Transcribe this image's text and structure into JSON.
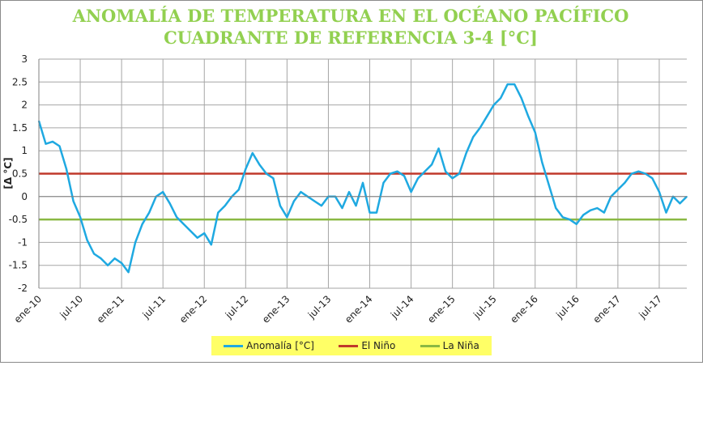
{
  "chart_data": {
    "type": "line",
    "title": [
      "ANOMALÍA DE TEMPERATURA EN EL OCÉANO PACÍFICO",
      "CUADRANTE DE REFERENCIA 3-4 [°C]"
    ],
    "ylabel": "[Δ °C]",
    "xlabel": "",
    "ylim": [
      -2,
      3
    ],
    "yticks": [
      3,
      2.5,
      2,
      1.5,
      1,
      0.5,
      0,
      -0.5,
      -1,
      -1.5,
      -2
    ],
    "ytick_labels": [
      "3",
      "2.5",
      "2",
      "1.5",
      "1",
      "0.5",
      "0",
      "-0.5",
      "-1",
      "-1.5",
      "-2"
    ],
    "xticks": [
      {
        "label": "ene-10",
        "date": "2010-01"
      },
      {
        "label": "jul-10",
        "date": "2010-07"
      },
      {
        "label": "ene-11",
        "date": "2011-01"
      },
      {
        "label": "jul-11",
        "date": "2011-07"
      },
      {
        "label": "ene-12",
        "date": "2012-01"
      },
      {
        "label": "jul-12",
        "date": "2012-07"
      },
      {
        "label": "ene-13",
        "date": "2013-01"
      },
      {
        "label": "jul-13",
        "date": "2013-07"
      },
      {
        "label": "ene-14",
        "date": "2014-01"
      },
      {
        "label": "jul-14",
        "date": "2014-07"
      },
      {
        "label": "ene-15",
        "date": "2015-01"
      },
      {
        "label": "jul-15",
        "date": "2015-07"
      },
      {
        "label": "ene-16",
        "date": "2016-01"
      },
      {
        "label": "jul-16",
        "date": "2016-07"
      },
      {
        "label": "ene-17",
        "date": "2017-01"
      },
      {
        "label": "jul-17",
        "date": "2017-07"
      }
    ],
    "x_range": [
      "2010-01",
      "2017-11"
    ],
    "grid": true,
    "legend_position": "bottom",
    "series": [
      {
        "name": "Anomalía [°C]",
        "color": "#1fa9e1",
        "dates": [
          "2010-01",
          "2010-02",
          "2010-03",
          "2010-04",
          "2010-05",
          "2010-06",
          "2010-07",
          "2010-08",
          "2010-09",
          "2010-10",
          "2010-11",
          "2010-12",
          "2011-01",
          "2011-02",
          "2011-03",
          "2011-04",
          "2011-05",
          "2011-06",
          "2011-07",
          "2011-08",
          "2011-09",
          "2011-10",
          "2011-11",
          "2011-12",
          "2012-01",
          "2012-02",
          "2012-03",
          "2012-04",
          "2012-05",
          "2012-06",
          "2012-07",
          "2012-08",
          "2012-09",
          "2012-10",
          "2012-11",
          "2012-12",
          "2013-01",
          "2013-02",
          "2013-03",
          "2013-04",
          "2013-05",
          "2013-06",
          "2013-07",
          "2013-08",
          "2013-09",
          "2013-10",
          "2013-11",
          "2013-12",
          "2014-01",
          "2014-02",
          "2014-03",
          "2014-04",
          "2014-05",
          "2014-06",
          "2014-07",
          "2014-08",
          "2014-09",
          "2014-10",
          "2014-11",
          "2014-12",
          "2015-01",
          "2015-02",
          "2015-03",
          "2015-04",
          "2015-05",
          "2015-06",
          "2015-07",
          "2015-08",
          "2015-09",
          "2015-10",
          "2015-11",
          "2015-12",
          "2016-01",
          "2016-02",
          "2016-03",
          "2016-04",
          "2016-05",
          "2016-06",
          "2016-07",
          "2016-08",
          "2016-09",
          "2016-10",
          "2016-11",
          "2016-12",
          "2017-01",
          "2017-02",
          "2017-03",
          "2017-04",
          "2017-05",
          "2017-06",
          "2017-07",
          "2017-08",
          "2017-09",
          "2017-10",
          "2017-11"
        ],
        "values": [
          1.65,
          1.15,
          1.2,
          1.1,
          0.6,
          -0.1,
          -0.45,
          -0.95,
          -1.25,
          -1.35,
          -1.5,
          -1.35,
          -1.45,
          -1.65,
          -1.0,
          -0.6,
          -0.35,
          0.0,
          0.1,
          -0.15,
          -0.45,
          -0.6,
          -0.75,
          -0.9,
          -0.8,
          -1.05,
          -0.35,
          -0.2,
          0.0,
          0.15,
          0.6,
          0.95,
          0.7,
          0.5,
          0.4,
          -0.2,
          -0.45,
          -0.1,
          0.1,
          0.0,
          -0.1,
          -0.2,
          0.0,
          0.0,
          -0.25,
          0.1,
          -0.2,
          0.3,
          -0.35,
          -0.35,
          0.3,
          0.5,
          0.55,
          0.45,
          0.1,
          0.4,
          0.55,
          0.7,
          1.05,
          0.55,
          0.4,
          0.5,
          0.95,
          1.3,
          1.5,
          1.75,
          2.0,
          2.15,
          2.45,
          2.45,
          2.15,
          1.75,
          1.4,
          0.75,
          0.25,
          -0.25,
          -0.45,
          -0.5,
          -0.6,
          -0.4,
          -0.3,
          -0.25,
          -0.35,
          0.0,
          0.15,
          0.3,
          0.5,
          0.55,
          0.5,
          0.4,
          0.1,
          -0.35,
          0.0,
          -0.15,
          0.0
        ]
      },
      {
        "name": "El Niño",
        "color": "#c0392b",
        "constant": 0.5
      },
      {
        "name": "La Niña",
        "color": "#8ab843",
        "constant": -0.5
      }
    ]
  }
}
